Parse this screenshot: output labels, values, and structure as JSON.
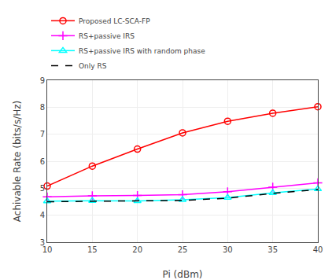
{
  "chart_data": {
    "type": "line",
    "x": [
      10,
      15,
      20,
      25,
      30,
      35,
      40
    ],
    "xlabel": "Pi (dBm)",
    "ylabel": "Achivable Rate (bits/s/Hz)",
    "xlim": [
      10,
      40
    ],
    "ylim": [
      3,
      9
    ],
    "xticks": [
      10,
      15,
      20,
      25,
      30,
      35,
      40
    ],
    "yticks": [
      3,
      4,
      5,
      6,
      7,
      8,
      9
    ],
    "grid": true,
    "legend": "upper left",
    "series": [
      {
        "name": "Proposed LC-SCA-FP",
        "color": "#FF0000",
        "marker": "circle",
        "line_style": "solid",
        "values": [
          5.08,
          5.82,
          6.45,
          7.05,
          7.48,
          7.78,
          8.02
        ]
      },
      {
        "name": "RS+passive IRS",
        "color": "#FF00FF",
        "marker": "plus",
        "line_style": "solid",
        "values": [
          4.68,
          4.72,
          4.73,
          4.76,
          4.87,
          5.04,
          5.2
        ]
      },
      {
        "name": "RS+passive IRS with random phase",
        "color": "#00FFFF",
        "marker": "triangle",
        "line_style": "solid",
        "values": [
          4.52,
          4.54,
          4.53,
          4.57,
          4.65,
          4.83,
          4.97
        ]
      },
      {
        "name": "Only RS",
        "color": "#000000",
        "marker": "none",
        "line_style": "dashed",
        "values": [
          4.5,
          4.52,
          4.52,
          4.55,
          4.63,
          4.81,
          4.95
        ]
      }
    ]
  }
}
